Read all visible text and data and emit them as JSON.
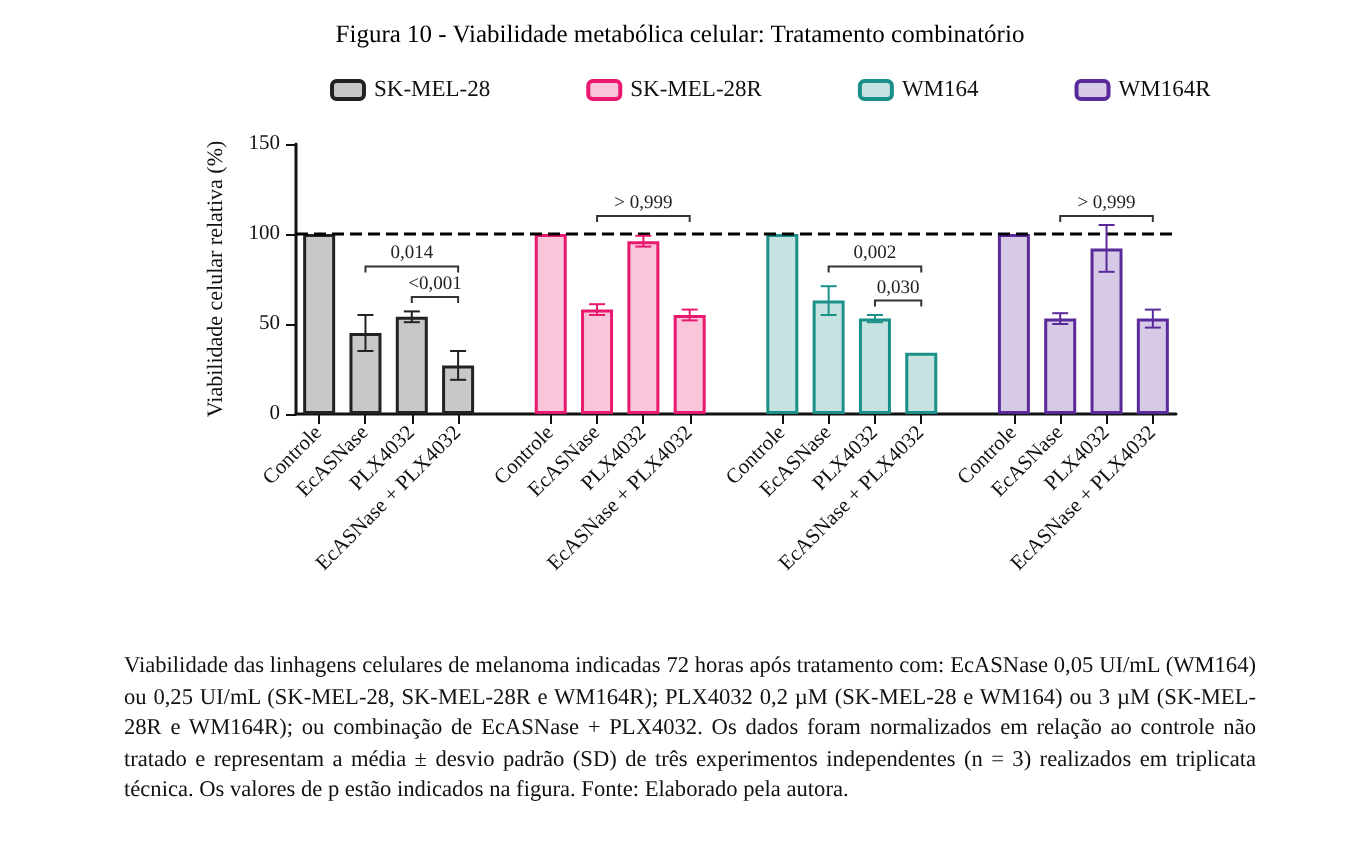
{
  "chart_data": {
    "type": "bar",
    "title": "Figura 10 - Viabilidade metabólica celular: Tratamento combinatório",
    "ylabel": "Viabilidade celular relativa (%)",
    "categories": [
      "Controle",
      "EcASNase",
      "PLX4032",
      "EcASNase + PLX4032",
      null,
      "Controle",
      "EcASNase",
      "PLX4032",
      "EcASNase + PLX4032",
      null,
      "Controle",
      "EcASNase",
      "PLX4032",
      "EcASNase + PLX4032",
      null,
      "Controle",
      "EcASNase",
      "PLX4032",
      "EcASNase + PLX4032"
    ],
    "series": [
      {
        "name": "SK-MEL-28",
        "color": "#222222",
        "values": [
          100,
          45,
          54,
          27,
          null,
          null,
          null,
          null,
          null,
          null,
          null,
          null,
          null,
          null,
          null,
          null,
          null,
          null,
          null
        ],
        "errors": [
          null,
          10,
          3,
          8,
          null,
          null,
          null,
          null,
          null,
          null,
          null,
          null,
          null,
          null,
          null,
          null,
          null,
          null,
          null
        ]
      },
      {
        "name": "SK-MEL-28R",
        "color": "#e8196e",
        "values": [
          null,
          null,
          null,
          null,
          null,
          100,
          58,
          96,
          55,
          null,
          null,
          null,
          null,
          null,
          null,
          null,
          null,
          null,
          null
        ],
        "errors": [
          null,
          null,
          null,
          null,
          null,
          null,
          3,
          3,
          3,
          null,
          null,
          null,
          null,
          null,
          null,
          null,
          null,
          null,
          null
        ]
      },
      {
        "name": "WM164",
        "color": "#1a9088",
        "values": [
          null,
          null,
          null,
          null,
          null,
          null,
          null,
          null,
          null,
          null,
          100,
          63,
          53,
          34,
          null,
          null,
          null,
          null,
          null
        ],
        "errors": [
          null,
          null,
          null,
          null,
          null,
          null,
          null,
          null,
          null,
          null,
          null,
          8,
          2,
          null,
          null,
          null,
          null,
          null,
          null
        ]
      },
      {
        "name": "WM164R",
        "color": "#5a2a9a",
        "values": [
          null,
          null,
          null,
          null,
          null,
          null,
          null,
          null,
          null,
          null,
          null,
          null,
          null,
          null,
          null,
          100,
          53,
          92,
          53
        ],
        "errors": [
          null,
          null,
          null,
          null,
          null,
          null,
          null,
          null,
          null,
          null,
          null,
          null,
          null,
          null,
          null,
          null,
          3,
          13,
          5
        ]
      }
    ],
    "ylim": [
      0,
      150
    ],
    "yticks": [
      0,
      50,
      100,
      150
    ],
    "grid": false,
    "legend": "top",
    "ref_lines": [
      {
        "axis": "y",
        "value": 100,
        "color": "#000000",
        "line_style": "dashed"
      }
    ],
    "annotations": [
      "0,014",
      "<0,001",
      "> 0,999",
      "0,002",
      "0,030",
      "> 0,999",
      "Viabilidade das linhagens celulares de melanoma indicadas 72 horas após tratamento com: EcASNase 0,05 UI/mL (WM164) ou 0,25 UI/mL (SK-MEL-28, SK-MEL-28R e WM164R); PLX4032 0,2 µM (SK-MEL-28 e WM164) ou 3 µM (SK-MEL-28R e WM164R); ou combinação de EcASNase + PLX4032. Os dados foram normalizados em relação ao controle não tratado e representam a média ± desvio padrão (SD) de três experimentos independentes (n = 3) realizados em triplicata técnica. Os valores de p estão indicados na figura. Fonte: Elaborado pela autora."
    ]
  }
}
